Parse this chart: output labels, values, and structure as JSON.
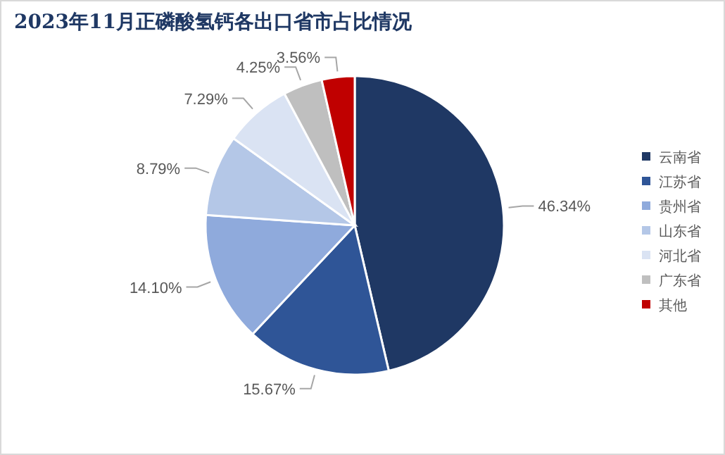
{
  "chart_data": {
    "type": "pie",
    "title": "2023年11月正磷酸氢钙各出口省市占比情况",
    "categories": [
      "云南省",
      "江苏省",
      "贵州省",
      "山东省",
      "河北省",
      "广东省",
      "其他"
    ],
    "values": [
      46.34,
      15.67,
      14.1,
      8.79,
      7.29,
      4.25,
      3.56
    ],
    "value_labels": [
      "46.34%",
      "15.67%",
      "14.10%",
      "8.79%",
      "7.29%",
      "4.25%",
      "3.56%"
    ],
    "colors": [
      "#1f3864",
      "#2f5597",
      "#8faadc",
      "#b4c7e7",
      "#dae3f3",
      "#bfbfbf",
      "#c00000"
    ],
    "legend": "right"
  }
}
